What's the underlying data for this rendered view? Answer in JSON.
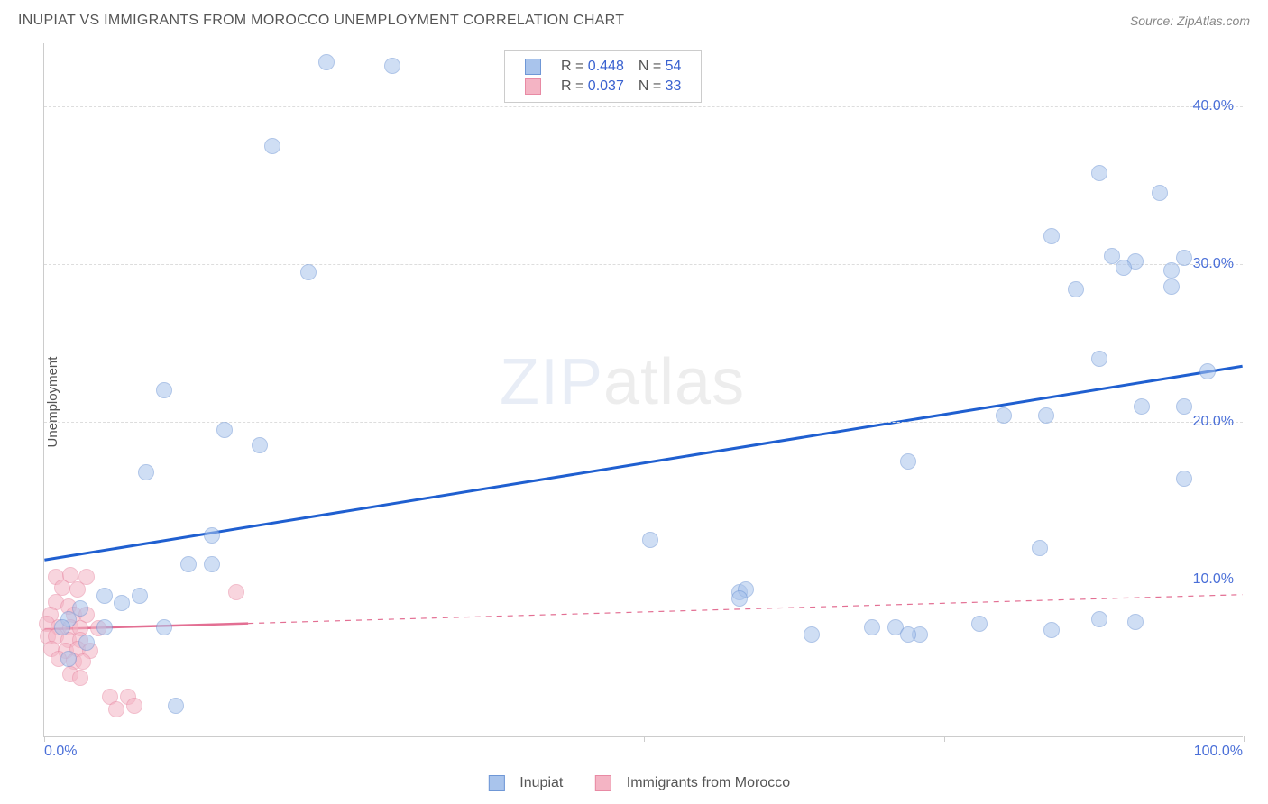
{
  "header": {
    "title": "INUPIAT VS IMMIGRANTS FROM MOROCCO UNEMPLOYMENT CORRELATION CHART",
    "source_label": "Source: ZipAtlas.com"
  },
  "ylabel": "Unemployment",
  "chart": {
    "type": "scatter",
    "xlim": [
      0,
      100
    ],
    "ylim": [
      0,
      44
    ],
    "background_color": "#ffffff",
    "grid_color": "#dddddd",
    "axis_color": "#cccccc",
    "tick_color": "#4a6fd8",
    "yticks": [
      10,
      20,
      30,
      40
    ],
    "ytick_labels": [
      "10.0%",
      "20.0%",
      "30.0%",
      "40.0%"
    ],
    "xtick_positions": [
      0,
      25,
      50,
      75,
      100
    ],
    "xtick_labels_show": [
      0,
      100
    ],
    "xtick_labels": {
      "0": "0.0%",
      "100": "100.0%"
    },
    "marker_radius": 9,
    "marker_opacity": 0.55,
    "series": {
      "inupiat": {
        "label": "Inupiat",
        "fill_color": "#a9c4ec",
        "stroke_color": "#6f97d6",
        "trend_color": "#1f5fd0",
        "trend_width": 3,
        "trend_dash": "none",
        "R": "0.448",
        "N": "54",
        "trend": {
          "x1": 0,
          "y1": 11.2,
          "x2": 100,
          "y2": 23.5
        },
        "points": [
          [
            23.5,
            42.8
          ],
          [
            29,
            42.6
          ],
          [
            19,
            37.5
          ],
          [
            22,
            29.5
          ],
          [
            88,
            35.8
          ],
          [
            93,
            34.5
          ],
          [
            84,
            31.8
          ],
          [
            89,
            30.5
          ],
          [
            91,
            30.2
          ],
          [
            95,
            30.4
          ],
          [
            90,
            29.8
          ],
          [
            94,
            29.6
          ],
          [
            86,
            28.4
          ],
          [
            94,
            28.6
          ],
          [
            88,
            24.0
          ],
          [
            97,
            23.2
          ],
          [
            91.5,
            21.0
          ],
          [
            95,
            21.0
          ],
          [
            80,
            20.4
          ],
          [
            83.5,
            20.4
          ],
          [
            72,
            17.5
          ],
          [
            95,
            16.4
          ],
          [
            83,
            12.0
          ],
          [
            10,
            22.0
          ],
          [
            15,
            19.5
          ],
          [
            18,
            18.5
          ],
          [
            8.5,
            16.8
          ],
          [
            14,
            12.8
          ],
          [
            6.5,
            8.5
          ],
          [
            12,
            11.0
          ],
          [
            14,
            11.0
          ],
          [
            5,
            9.0
          ],
          [
            8,
            9.0
          ],
          [
            10,
            7.0
          ],
          [
            5,
            7.0
          ],
          [
            2,
            7.5
          ],
          [
            3,
            8.2
          ],
          [
            3.5,
            6.0
          ],
          [
            2,
            5.0
          ],
          [
            11,
            2.0
          ],
          [
            50.5,
            12.5
          ],
          [
            58,
            9.2
          ],
          [
            58.5,
            9.4
          ],
          [
            58,
            8.8
          ],
          [
            64,
            6.5
          ],
          [
            69,
            7.0
          ],
          [
            71,
            7.0
          ],
          [
            73,
            6.5
          ],
          [
            72,
            6.5
          ],
          [
            78,
            7.2
          ],
          [
            84,
            6.8
          ],
          [
            88,
            7.5
          ],
          [
            91,
            7.3
          ],
          [
            1.5,
            7.0
          ]
        ]
      },
      "morocco": {
        "label": "Immigrants from Morocco",
        "fill_color": "#f4b4c4",
        "stroke_color": "#e88aa4",
        "trend_color": "#e36f93",
        "trend_width": 2.5,
        "trend_dash": "6 6",
        "trend_solid_to_x": 17,
        "R": "0.037",
        "N": "33",
        "trend": {
          "x1": 0,
          "y1": 6.8,
          "x2": 100,
          "y2": 9.0
        },
        "points": [
          [
            1.0,
            10.2
          ],
          [
            2.2,
            10.3
          ],
          [
            3.5,
            10.2
          ],
          [
            1.5,
            9.5
          ],
          [
            2.8,
            9.4
          ],
          [
            16,
            9.2
          ],
          [
            1.0,
            8.6
          ],
          [
            2.0,
            8.3
          ],
          [
            0.5,
            7.8
          ],
          [
            2.5,
            7.8
          ],
          [
            3.5,
            7.8
          ],
          [
            0.2,
            7.2
          ],
          [
            1.2,
            7.0
          ],
          [
            2.2,
            7.0
          ],
          [
            3.0,
            6.9
          ],
          [
            4.5,
            6.9
          ],
          [
            0.3,
            6.4
          ],
          [
            1.0,
            6.4
          ],
          [
            2.0,
            6.2
          ],
          [
            3.0,
            6.2
          ],
          [
            0.6,
            5.6
          ],
          [
            1.8,
            5.5
          ],
          [
            2.8,
            5.6
          ],
          [
            3.8,
            5.5
          ],
          [
            1.2,
            5.0
          ],
          [
            2.5,
            4.8
          ],
          [
            3.2,
            4.8
          ],
          [
            2.2,
            4.0
          ],
          [
            3.0,
            3.8
          ],
          [
            5.5,
            2.6
          ],
          [
            7.0,
            2.6
          ],
          [
            6.0,
            1.8
          ],
          [
            7.5,
            2.0
          ]
        ]
      }
    },
    "legend_top": {
      "r_label": "R =",
      "n_label": "N =",
      "label_color": "#555555",
      "value_color": "#3a62d0"
    },
    "legend_bottom": {
      "items": [
        "inupiat",
        "morocco"
      ]
    }
  },
  "watermark": {
    "zip": "ZIP",
    "atlas": "atlas"
  }
}
